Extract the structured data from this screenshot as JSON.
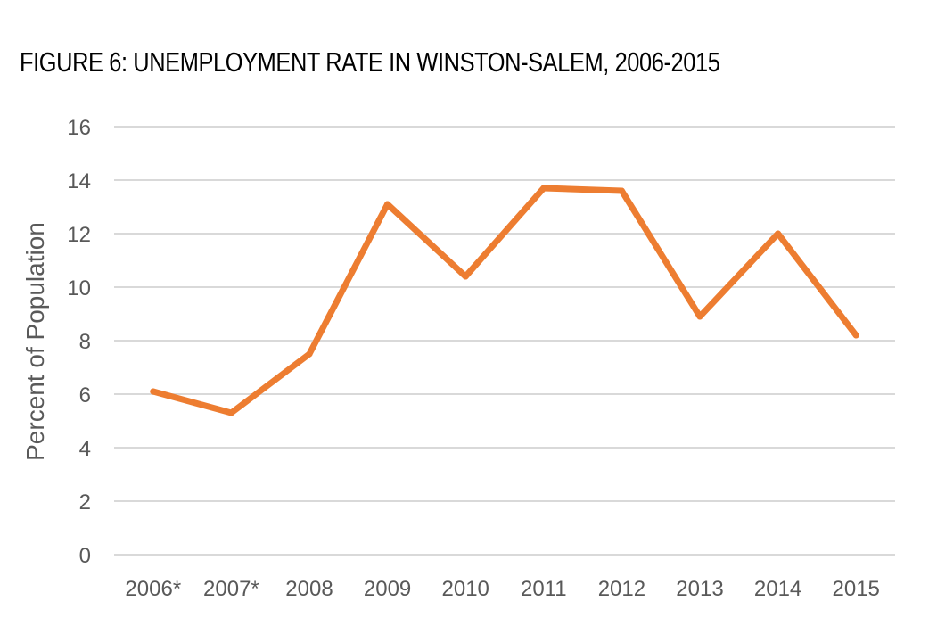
{
  "chart_data": {
    "type": "line",
    "title": "FIGURE 6: UNEMPLOYMENT RATE IN WINSTON-SALEM, 2006-2015",
    "xlabel": "",
    "ylabel": "Percent of Population",
    "categories": [
      "2006*",
      "2007*",
      "2008",
      "2009",
      "2010",
      "2011",
      "2012",
      "2013",
      "2014",
      "2015"
    ],
    "series": [
      {
        "values": [
          6.1,
          5.3,
          7.5,
          13.1,
          10.4,
          13.7,
          13.6,
          8.9,
          12.0,
          8.2
        ]
      }
    ],
    "ylim": [
      0,
      16
    ],
    "yticks": [
      0,
      2,
      4,
      6,
      8,
      10,
      12,
      14,
      16
    ],
    "grid": true,
    "legend": "none",
    "colors": {
      "line": "#ED7D31",
      "grid": "#D9D9D9",
      "text": "#595959"
    }
  }
}
